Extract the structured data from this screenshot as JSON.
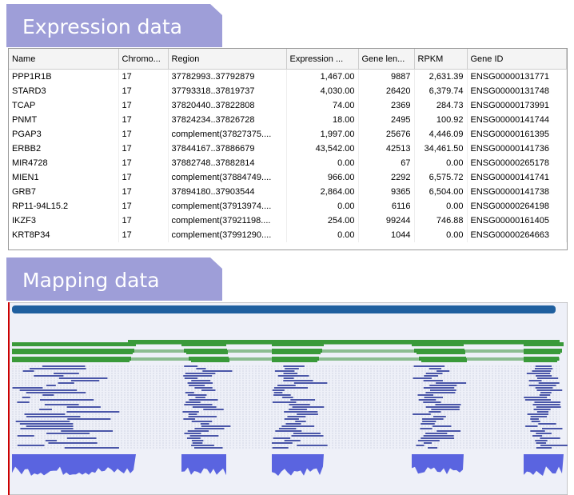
{
  "sections": {
    "expression_title": "Expression data",
    "mapping_title": "Mapping data"
  },
  "table": {
    "columns": [
      "Name",
      "Chromo...",
      "Region",
      "Expression ...",
      "Gene len...",
      "RPKM",
      "Gene ID"
    ],
    "rows": [
      [
        "PPP1R1B",
        "17",
        "37782993..37792879",
        "1,467.00",
        "9887",
        "2,631.39",
        "ENSG00000131771"
      ],
      [
        "STARD3",
        "17",
        "37793318..37819737",
        "4,030.00",
        "26420",
        "6,379.74",
        "ENSG00000131748"
      ],
      [
        "TCAP",
        "17",
        "37820440..37822808",
        "74.00",
        "2369",
        "284.73",
        "ENSG00000173991"
      ],
      [
        "PNMT",
        "17",
        "37824234..37826728",
        "18.00",
        "2495",
        "100.92",
        "ENSG00000141744"
      ],
      [
        "PGAP3",
        "17",
        "complement(37827375....",
        "1,997.00",
        "25676",
        "4,446.09",
        "ENSG00000161395"
      ],
      [
        "ERBB2",
        "17",
        "37844167..37886679",
        "43,542.00",
        "42513",
        "34,461.50",
        "ENSG00000141736"
      ],
      [
        "MIR4728",
        "17",
        "37882748..37882814",
        "0.00",
        "67",
        "0.00",
        "ENSG00000265178"
      ],
      [
        "MIEN1",
        "17",
        "complement(37884749....",
        "966.00",
        "2292",
        "6,575.72",
        "ENSG00000141741"
      ],
      [
        "GRB7",
        "17",
        "37894180..37903544",
        "2,864.00",
        "9365",
        "6,504.00",
        "ENSG00000141738"
      ],
      [
        "RP11-94L15.2",
        "17",
        "complement(37913974....",
        "0.00",
        "6116",
        "0.00",
        "ENSG00000264198"
      ],
      [
        "IKZF3",
        "17",
        "complement(37921198....",
        "254.00",
        "99244",
        "746.88",
        "ENSG00000161405"
      ],
      [
        "KRT8P34",
        "17",
        "complement(37991290....",
        "0.00",
        "1044",
        "0.00",
        "ENSG00000264663"
      ]
    ]
  }
}
